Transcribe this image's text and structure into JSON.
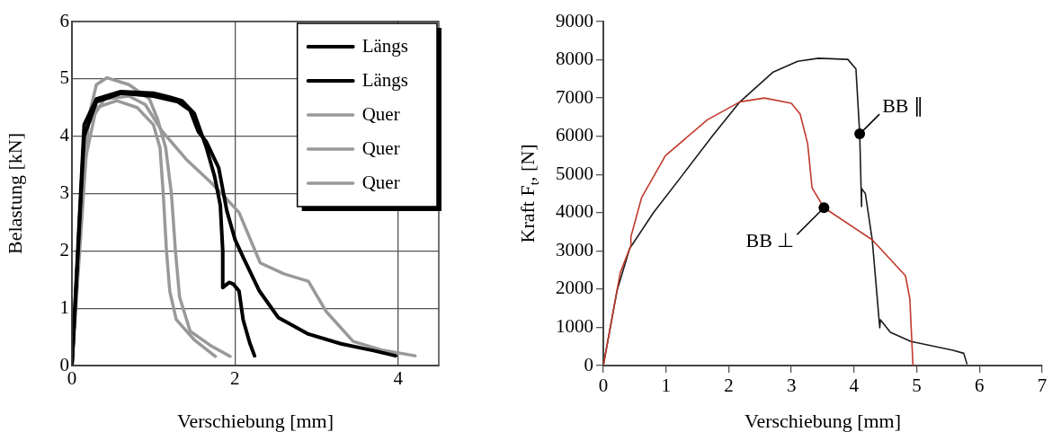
{
  "chart_data": [
    {
      "type": "line",
      "xlabel": "Verschiebung [mm]",
      "ylabel": "Belastung [kN]",
      "xlim": [
        0,
        4.5
      ],
      "ylim": [
        0,
        6
      ],
      "xticks": [
        0,
        2,
        4
      ],
      "yticks": [
        0,
        1,
        2,
        3,
        4,
        5,
        6
      ],
      "grid": true,
      "legend": "top right",
      "series": [
        {
          "name": "Längs",
          "color": "#000000",
          "x": [
            0,
            0.15,
            0.3,
            0.6,
            1.0,
            1.3,
            1.45,
            1.55,
            1.65,
            1.8,
            1.9,
            2.0,
            2.1,
            2.3,
            2.53,
            2.9,
            3.3,
            3.7,
            3.97
          ],
          "values": [
            0,
            4.0,
            4.6,
            4.75,
            4.7,
            4.6,
            4.45,
            4.08,
            3.9,
            3.45,
            2.7,
            2.2,
            1.89,
            1.3,
            0.84,
            0.55,
            0.38,
            0.26,
            0.17
          ]
        },
        {
          "name": "Längs",
          "color": "#000000",
          "x": [
            0,
            0.15,
            0.3,
            0.6,
            1.0,
            1.2,
            1.35,
            1.5,
            1.65,
            1.75,
            1.82,
            1.85,
            1.85,
            1.93,
            1.98,
            2.05,
            2.1,
            2.18,
            2.24
          ],
          "values": [
            0,
            4.2,
            4.65,
            4.78,
            4.75,
            4.68,
            4.62,
            4.4,
            3.8,
            3.3,
            2.8,
            2.0,
            1.36,
            1.45,
            1.42,
            1.3,
            0.8,
            0.4,
            0.17
          ]
        },
        {
          "name": "Quer",
          "color": "#999999",
          "x": [
            0,
            0.1,
            0.2,
            0.3,
            0.43,
            0.7,
            0.95,
            1.05,
            1.15,
            1.22,
            1.27,
            1.32,
            1.45,
            1.7,
            1.94
          ],
          "values": [
            0,
            2.5,
            4.3,
            4.9,
            5.02,
            4.9,
            4.65,
            4.3,
            3.8,
            3.0,
            2.0,
            1.2,
            0.6,
            0.35,
            0.16
          ]
        },
        {
          "name": "Quer",
          "color": "#999999",
          "x": [
            0,
            0.15,
            0.3,
            0.55,
            0.8,
            1.0,
            1.08,
            1.12,
            1.16,
            1.2,
            1.28,
            1.5,
            1.76
          ],
          "values": [
            0,
            3.5,
            4.5,
            4.62,
            4.5,
            4.2,
            3.8,
            3.0,
            2.0,
            1.3,
            0.8,
            0.45,
            0.16
          ]
        },
        {
          "name": "Quer",
          "color": "#999999",
          "x": [
            0,
            0.2,
            0.4,
            0.7,
            0.9,
            1.1,
            1.4,
            1.7,
            1.85,
            2.05,
            2.31,
            2.6,
            2.9,
            3.12,
            3.45,
            3.8,
            4.21
          ],
          "values": [
            0,
            4.2,
            4.65,
            4.7,
            4.55,
            4.1,
            3.6,
            3.2,
            2.98,
            2.67,
            1.79,
            1.6,
            1.47,
            0.94,
            0.42,
            0.27,
            0.17
          ]
        }
      ]
    },
    {
      "type": "line",
      "xlabel": "Verschiebung [mm]",
      "ylabel": "Kraft F$_{t}$, [N]",
      "xlim": [
        0,
        7
      ],
      "ylim": [
        0,
        9000
      ],
      "xticks": [
        0,
        1,
        2,
        3,
        4,
        5,
        6,
        7
      ],
      "yticks": [
        0,
        1000,
        2000,
        3000,
        4000,
        5000,
        6000,
        7000,
        8000,
        9000
      ],
      "annotations": [
        {
          "text": "BB ∥",
          "x": 4.09,
          "y": 6060
        },
        {
          "text": "BB ⊥",
          "x": 3.52,
          "y": 4130
        }
      ],
      "series": [
        {
          "color": "#c0392b",
          "x": [
            0,
            0.27,
            0.44,
            0.44,
            0.61,
            0.99,
            1.66,
            2.18,
            2.57,
            3.0,
            3.14,
            3.26,
            3.33,
            3.52,
            4.29,
            4.82,
            4.89,
            4.94
          ],
          "values": [
            0,
            2430,
            3140,
            3370,
            4390,
            5490,
            6430,
            6900,
            7000,
            6860,
            6580,
            5800,
            4650,
            4130,
            3290,
            2350,
            1740,
            0
          ]
        },
        {
          "color": "#1a1a1a",
          "x": [
            0,
            0.22,
            0.42,
            0.8,
            1.28,
            1.75,
            2.18,
            2.71,
            3.1,
            3.43,
            3.9,
            4.03,
            4.09,
            4.12,
            4.12,
            4.18,
            4.29,
            4.41,
            4.42,
            4.58,
            4.91,
            5.58,
            5.75,
            5.8
          ],
          "values": [
            0,
            1970,
            3060,
            4000,
            5020,
            6030,
            6900,
            7680,
            7960,
            8040,
            8010,
            7760,
            6060,
            4160,
            4630,
            4500,
            3290,
            990,
            1200,
            870,
            630,
            400,
            320,
            50
          ]
        }
      ]
    }
  ]
}
